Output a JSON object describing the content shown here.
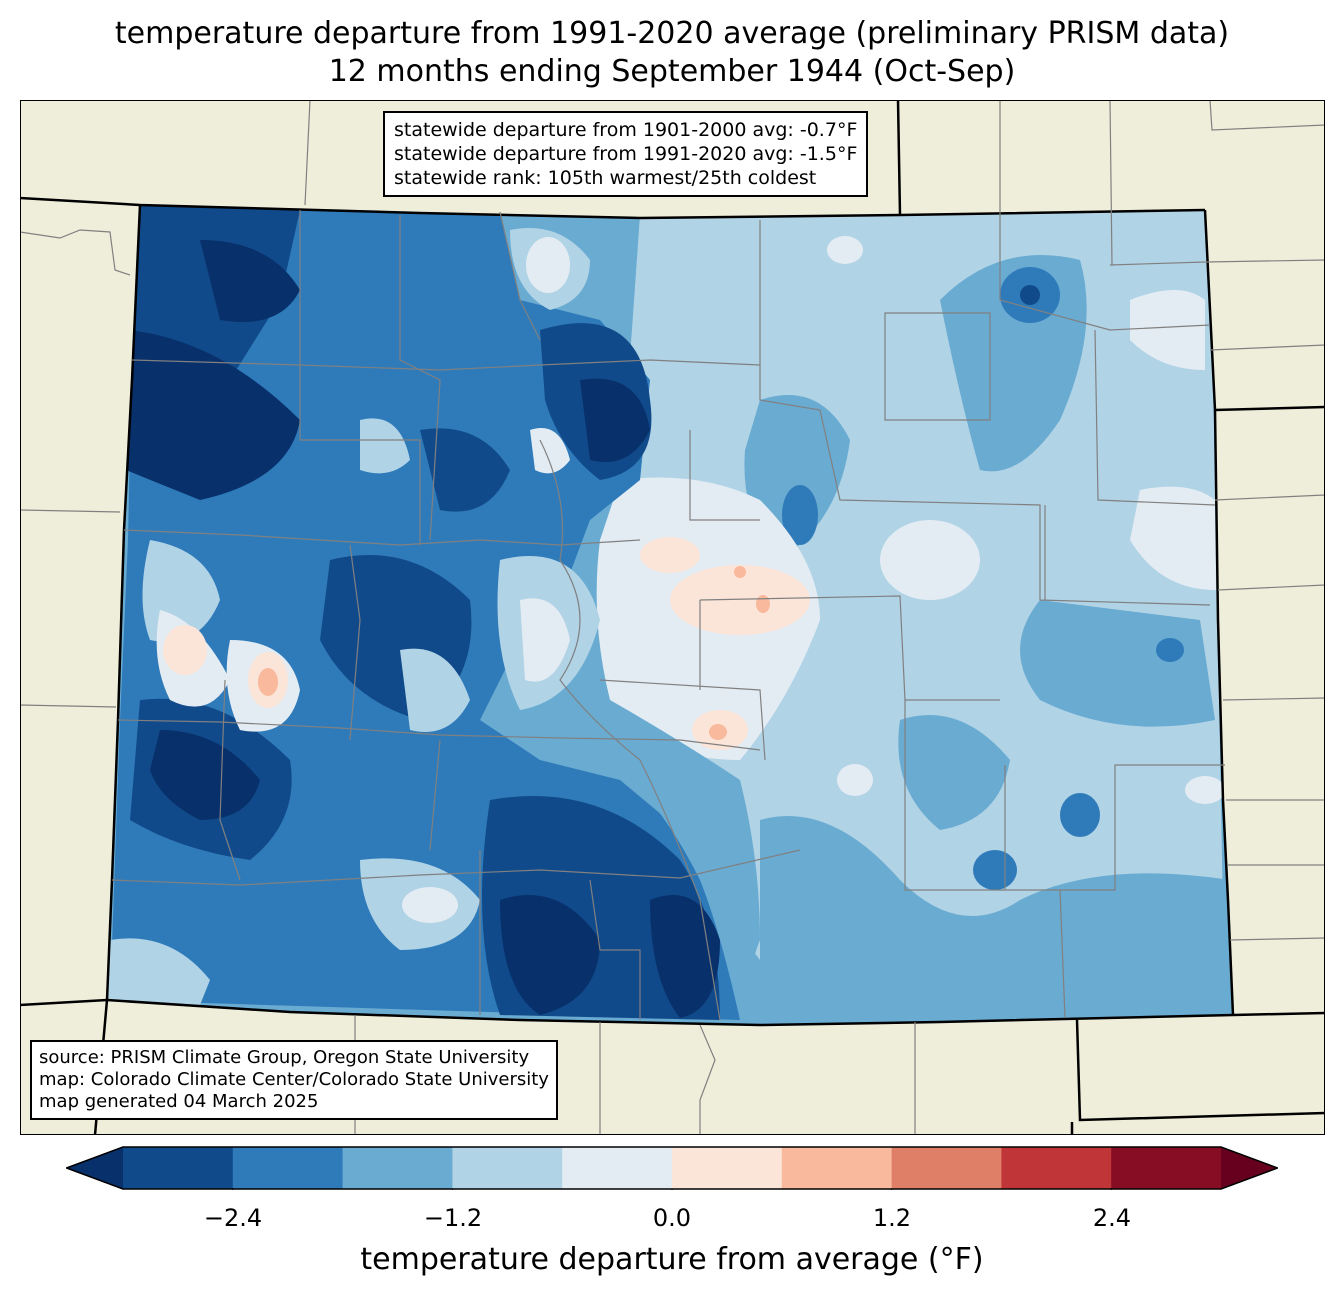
{
  "title": {
    "line1": "temperature departure from 1991-2020 average (preliminary PRISM data)",
    "line2": "12 months ending September 1944 (Oct-Sep)"
  },
  "stats": {
    "line1": "statewide departure from 1901-2000 avg: -0.7°F",
    "line2": "statewide departure from 1991-2020 avg: -1.5°F",
    "line3": "statewide rank: 105th warmest/25th coldest"
  },
  "source": {
    "line1": "source: PRISM Climate Group, Oregon State University",
    "line2": "map: Colorado Climate Center/Colorado State University",
    "line3": "map generated 04 March 2025"
  },
  "colorbar": {
    "label": "temperature departure from average (°F)",
    "ticks": [
      "−2.4",
      "−1.2",
      "0.0",
      "1.2",
      "2.4"
    ],
    "levels": [
      -3.0,
      -2.4,
      -1.8,
      -1.2,
      -0.6,
      0.0,
      0.6,
      1.2,
      1.8,
      2.4,
      3.0
    ],
    "extend": "both",
    "colors": [
      "#08306b",
      "#114a8a",
      "#2f7bba",
      "#6aabd2",
      "#b0d3e6",
      "#e4ecf3",
      "#fbe4d8",
      "#f8b99c",
      "#e07f68",
      "#c03638",
      "#860d23",
      "#67001f"
    ]
  },
  "map_colors": {
    "land": "#efeedb",
    "state_border": "#000000",
    "county_border": "#808080"
  }
}
